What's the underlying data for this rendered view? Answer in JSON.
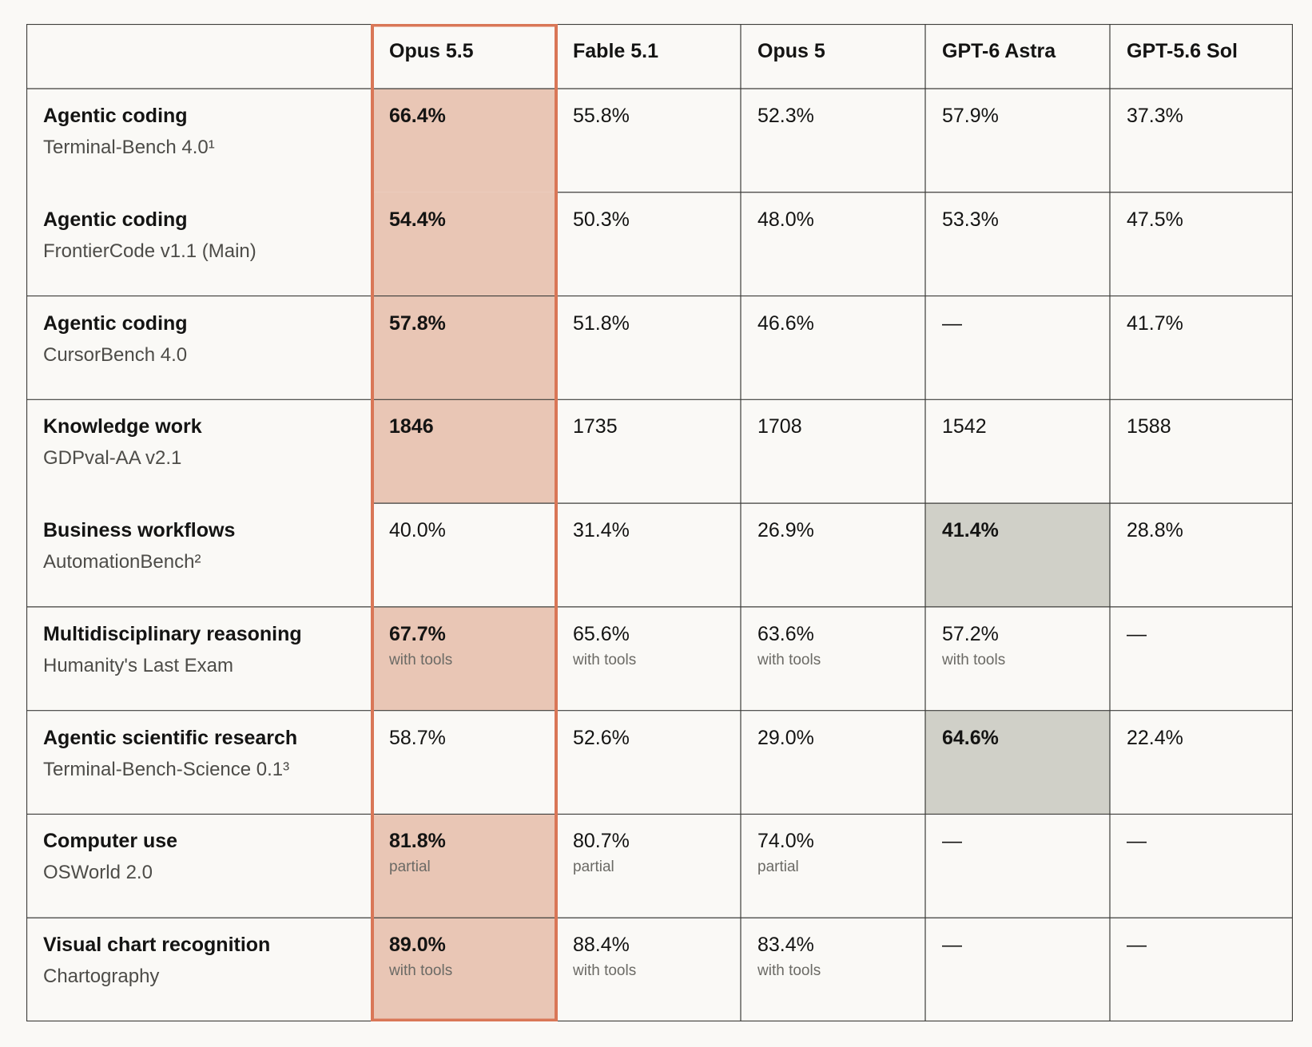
{
  "chart_data": {
    "type": "table",
    "columns": [
      "",
      "Opus 5.5",
      "Fable 5.1",
      "Opus 5",
      "GPT-6 Astra",
      "GPT-5.6 Sol"
    ],
    "highlight_color": "#e9c6b5",
    "highlight_border_color": "#d97757",
    "best_other_color": "#d0d0c8",
    "rows": [
      {
        "title": "Agentic coding",
        "subtitle": "Terminal-Bench 4.0¹",
        "group": 0,
        "cells": [
          {
            "v": "66.4%",
            "best": true
          },
          {
            "v": "55.8%"
          },
          {
            "v": "52.3%"
          },
          {
            "v": "57.9%"
          },
          {
            "v": "37.3%"
          }
        ]
      },
      {
        "title": "Agentic coding",
        "subtitle": "FrontierCode v1.1 (Main)",
        "group": 0,
        "cells": [
          {
            "v": "54.4%",
            "best": true
          },
          {
            "v": "50.3%"
          },
          {
            "v": "48.0%"
          },
          {
            "v": "53.3%"
          },
          {
            "v": "47.5%"
          }
        ]
      },
      {
        "title": "Agentic coding",
        "subtitle": "CursorBench 4.0",
        "group": 1,
        "cells": [
          {
            "v": "57.8%",
            "best": true
          },
          {
            "v": "51.8%"
          },
          {
            "v": "46.6%"
          },
          {
            "v": "—"
          },
          {
            "v": "41.7%"
          }
        ]
      },
      {
        "title": "Knowledge work",
        "subtitle": "GDPval-AA v2.1",
        "group": 2,
        "cells": [
          {
            "v": "1846",
            "best": true
          },
          {
            "v": "1735"
          },
          {
            "v": "1708"
          },
          {
            "v": "1542"
          },
          {
            "v": "1588"
          }
        ]
      },
      {
        "title": "Business workflows",
        "subtitle": "AutomationBench²",
        "group": 2,
        "cells": [
          {
            "v": "40.0%"
          },
          {
            "v": "31.4%"
          },
          {
            "v": "26.9%"
          },
          {
            "v": "41.4%",
            "best": true
          },
          {
            "v": "28.8%"
          }
        ]
      },
      {
        "title": "Multidisciplinary reasoning",
        "subtitle": "Humanity's Last Exam",
        "group": 3,
        "cells": [
          {
            "v": "67.7%",
            "note": "with tools",
            "best": true
          },
          {
            "v": "65.6%",
            "note": "with tools"
          },
          {
            "v": "63.6%",
            "note": "with tools"
          },
          {
            "v": "57.2%",
            "note": "with tools"
          },
          {
            "v": "—"
          }
        ]
      },
      {
        "title": "Agentic scientific research",
        "subtitle": "Terminal-Bench-Science 0.1³",
        "group": 4,
        "cells": [
          {
            "v": "58.7%"
          },
          {
            "v": "52.6%"
          },
          {
            "v": "29.0%"
          },
          {
            "v": "64.6%",
            "best": true
          },
          {
            "v": "22.4%"
          }
        ]
      },
      {
        "title": "Computer use",
        "subtitle": "OSWorld 2.0",
        "group": 5,
        "cells": [
          {
            "v": "81.8%",
            "note": "partial",
            "best": true
          },
          {
            "v": "80.7%",
            "note": "partial"
          },
          {
            "v": "74.0%",
            "note": "partial"
          },
          {
            "v": "—"
          },
          {
            "v": "—"
          }
        ]
      },
      {
        "title": "Visual chart recognition",
        "subtitle": "Chartography",
        "group": 6,
        "cells": [
          {
            "v": "89.0%",
            "note": "with tools",
            "best": true
          },
          {
            "v": "88.4%",
            "note": "with tools"
          },
          {
            "v": "83.4%",
            "note": "with tools"
          },
          {
            "v": "—"
          },
          {
            "v": "—"
          }
        ]
      }
    ]
  }
}
